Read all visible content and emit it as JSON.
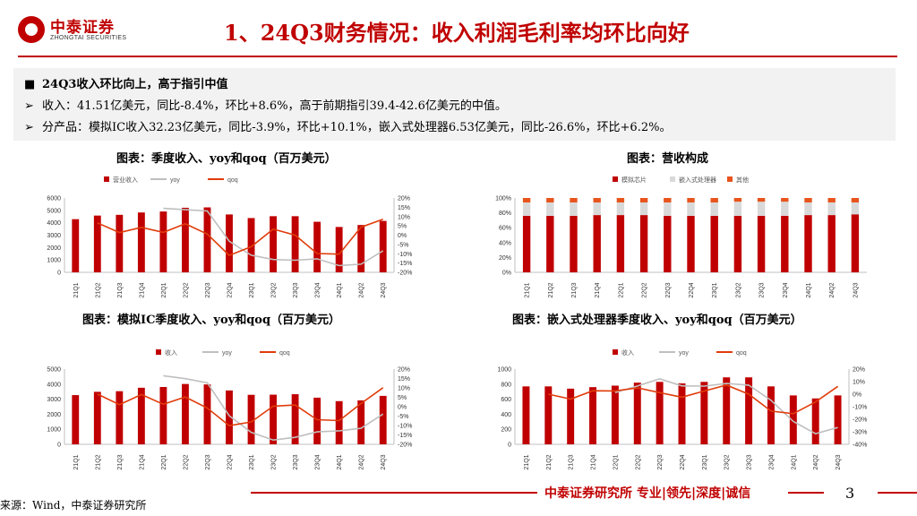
{
  "brand": {
    "name_cn": "中泰证券",
    "name_en": "ZHONGTAI SECURITIES"
  },
  "page_title": "1、24Q3财务情况：收入利润毛利率均环比向好",
  "summary": {
    "heading_marker": "■",
    "heading": "24Q3收入环比向上，高于指引中值",
    "bullet_marker": "➢",
    "lines": [
      "收入：41.51亿美元，同比-8.4%，环比+8.6%，高于前期指引39.4-42.6亿美元的中值。",
      "分产品：模拟IC收入32.23亿美元，同比-3.9%，环比+10.1%，嵌入式处理器6.53亿美元，同比-26.6%，环比+6.2%。"
    ]
  },
  "colors": {
    "bar": "#c00000",
    "yoy": "#bfbfbf",
    "qoq": "#e03c0a",
    "grey": "#d9d9d9",
    "other": "#e8541c",
    "axis": "#bfbfbf"
  },
  "chart_data": [
    {
      "id": "c1",
      "type": "bar",
      "title": "图表：季度收入、yoy和qoq（百万美元）",
      "categories": [
        "21Q1",
        "21Q2",
        "21Q3",
        "21Q4",
        "22Q1",
        "22Q2",
        "22Q3",
        "22Q4",
        "23Q1",
        "23Q2",
        "23Q3",
        "23Q4",
        "24Q1",
        "24Q2",
        "24Q3"
      ],
      "series": [
        {
          "name": "营业收入",
          "kind": "bar",
          "axis": "left",
          "values": [
            4290,
            4580,
            4640,
            4830,
            4910,
            5210,
            5240,
            4670,
            4380,
            4530,
            4530,
            4080,
            3660,
            3820,
            4150
          ]
        },
        {
          "name": "yoy",
          "kind": "line",
          "axis": "right",
          "values": [
            null,
            null,
            null,
            null,
            14.4,
            13.7,
            13.0,
            -3.3,
            -10.8,
            -13.1,
            -13.5,
            -12.7,
            -16.4,
            -15.6,
            -8.4
          ]
        },
        {
          "name": "qoq",
          "kind": "line",
          "axis": "right",
          "values": [
            null,
            6.6,
            1.4,
            4.2,
            1.5,
            6.1,
            0.6,
            -10.9,
            -6.2,
            3.3,
            0.0,
            -9.9,
            -10.2,
            4.3,
            8.6
          ]
        }
      ],
      "ylim_left": [
        0,
        6000
      ],
      "yticks_left": [
        "6000",
        "5000",
        "4000",
        "3000",
        "2000",
        "1000",
        "0"
      ],
      "ylim_right": [
        -20,
        20
      ],
      "yticks_right": [
        "20%",
        "15%",
        "10%",
        "5%",
        "0%",
        "-5%",
        "-10%",
        "-15%",
        "-20%"
      ]
    },
    {
      "id": "c2",
      "type": "bar",
      "stacked": true,
      "title": "图表：营收构成",
      "categories": [
        "21Q1",
        "21Q2",
        "21Q3",
        "21Q4",
        "22Q1",
        "22Q2",
        "22Q3",
        "22Q4",
        "23Q1",
        "23Q2",
        "23Q3",
        "23Q4",
        "24Q1",
        "24Q2",
        "24Q3"
      ],
      "series": [
        {
          "name": "模拟芯片",
          "values": [
            76,
            76,
            76,
            77,
            77,
            77,
            76,
            76,
            76,
            76,
            76,
            76,
            77,
            77,
            78
          ]
        },
        {
          "name": "嵌入式处理器",
          "values": [
            18,
            18,
            18,
            17,
            17,
            17,
            18,
            18,
            18,
            19,
            19,
            19,
            17,
            17,
            16
          ]
        },
        {
          "name": "其他",
          "values": [
            6,
            6,
            6,
            6,
            6,
            6,
            6,
            6,
            6,
            5,
            5,
            5,
            6,
            6,
            6
          ]
        }
      ],
      "ylim": [
        0,
        100
      ],
      "yticks": [
        "100%",
        "80%",
        "60%",
        "40%",
        "20%",
        "0%"
      ]
    },
    {
      "id": "c3",
      "type": "bar",
      "title": "图表：模拟IC季度收入、yoy和qoq（百万美元）",
      "categories": [
        "21Q1",
        "21Q2",
        "21Q3",
        "21Q4",
        "22Q1",
        "22Q2",
        "22Q3",
        "22Q4",
        "23Q1",
        "23Q2",
        "23Q3",
        "23Q4",
        "24Q1",
        "24Q2",
        "24Q3"
      ],
      "series": [
        {
          "name": "收入",
          "kind": "bar",
          "axis": "left",
          "values": [
            3270,
            3490,
            3530,
            3760,
            3810,
            4010,
            3980,
            3580,
            3290,
            3300,
            3330,
            3100,
            2870,
            2920,
            3220
          ]
        },
        {
          "name": "yoy",
          "kind": "line",
          "axis": "right",
          "values": [
            null,
            null,
            null,
            null,
            16.5,
            14.9,
            12.7,
            -4.8,
            -13.6,
            -17.7,
            -16.3,
            -13.4,
            -12.8,
            -11.5,
            -3.9
          ]
        },
        {
          "name": "qoq",
          "kind": "line",
          "axis": "right",
          "values": [
            null,
            6.7,
            1.1,
            6.5,
            1.3,
            5.2,
            -0.7,
            -10.1,
            -8.1,
            0.3,
            0.9,
            -6.9,
            -7.4,
            1.7,
            10.1
          ]
        }
      ],
      "ylim_left": [
        0,
        5000
      ],
      "yticks_left": [
        "5000",
        "4000",
        "3000",
        "2000",
        "1000",
        "0"
      ],
      "ylim_right": [
        -20,
        20
      ],
      "yticks_right": [
        "20%",
        "15%",
        "10%",
        "5%",
        "0%",
        "-5%",
        "-10%",
        "-15%",
        "-20%"
      ]
    },
    {
      "id": "c4",
      "type": "bar",
      "title": "图表：嵌入式处理器季度收入、yoy和qoq（百万美元）",
      "categories": [
        "21Q1",
        "21Q2",
        "21Q3",
        "21Q4",
        "22Q1",
        "22Q2",
        "22Q3",
        "22Q4",
        "23Q1",
        "23Q2",
        "23Q3",
        "23Q4",
        "24Q1",
        "24Q2",
        "24Q3"
      ],
      "series": [
        {
          "name": "收入",
          "kind": "bar",
          "axis": "left",
          "values": [
            770,
            770,
            740,
            760,
            780,
            820,
            830,
            810,
            830,
            890,
            890,
            770,
            650,
            610,
            650
          ]
        },
        {
          "name": "yoy",
          "kind": "line",
          "axis": "right",
          "values": [
            null,
            null,
            null,
            null,
            1.3,
            6.5,
            12.2,
            6.6,
            6.4,
            8.5,
            7.2,
            -4.9,
            -21.7,
            -31.5,
            -26.6
          ]
        },
        {
          "name": "qoq",
          "kind": "line",
          "axis": "right",
          "values": [
            null,
            0,
            -3.9,
            2.7,
            2.6,
            5.1,
            1.2,
            -2.4,
            2.5,
            7.2,
            0,
            -13.5,
            -15.6,
            -6.2,
            6.2
          ]
        }
      ],
      "ylim_left": [
        0,
        1000
      ],
      "yticks_left": [
        "1000",
        "800",
        "600",
        "400",
        "200",
        "0"
      ],
      "ylim_right": [
        -40,
        20
      ],
      "yticks_right": [
        "20%",
        "10%",
        "0%",
        "-10%",
        "-20%",
        "-30%",
        "-40%"
      ]
    }
  ],
  "footer": {
    "tagline": "中泰证券研究所 专业|领先|深度|诚信",
    "page": "3",
    "source": "来源：Wind，中泰证券研究所"
  }
}
